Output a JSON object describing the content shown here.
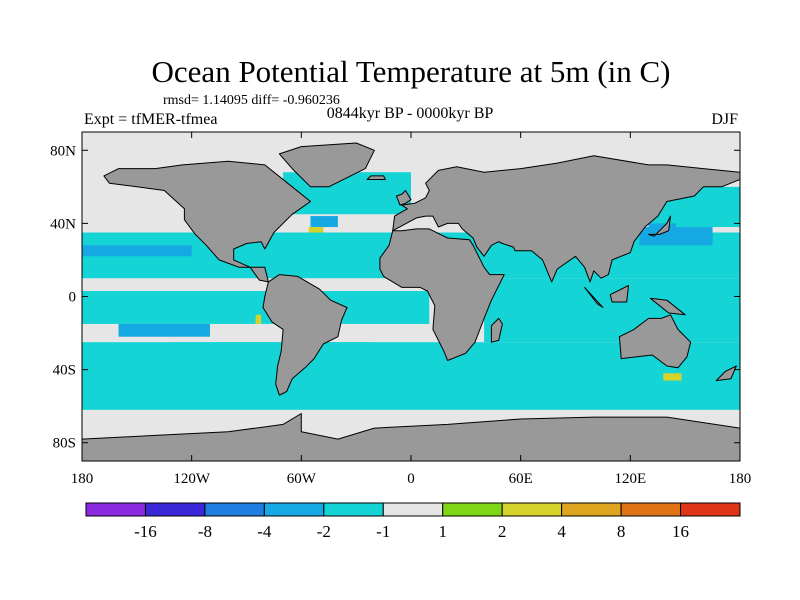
{
  "chart_data": {
    "type": "heatmap",
    "title": "Ocean Potential Temperature at 5m (in C)",
    "stats": "rmsd= 1.14095 diff= -0.960236",
    "experiment": "Expt = tfMER-tfmea",
    "period": "0844kyr BP - 0000kyr BP",
    "season": "DJF",
    "x_ticks": [
      {
        "value": -180,
        "label": "180"
      },
      {
        "value": -120,
        "label": "120W"
      },
      {
        "value": -60,
        "label": "60W"
      },
      {
        "value": 0,
        "label": "0"
      },
      {
        "value": 60,
        "label": "60E"
      },
      {
        "value": 120,
        "label": "120E"
      },
      {
        "value": 180,
        "label": "180"
      }
    ],
    "y_ticks": [
      {
        "value": 80,
        "label": "80N"
      },
      {
        "value": 40,
        "label": "40N"
      },
      {
        "value": 0,
        "label": "0"
      },
      {
        "value": -40,
        "label": "40S"
      },
      {
        "value": -80,
        "label": "80S"
      }
    ],
    "xlim": [
      -180,
      180
    ],
    "ylim": [
      -90,
      90
    ],
    "colorbar": {
      "colors": [
        "#8a2be2",
        "#3a28d8",
        "#1e7ee0",
        "#15a8e2",
        "#14d4d6",
        "#e6e6e6",
        "#7ed616",
        "#d6d22c",
        "#e0a520",
        "#e07414",
        "#e03416"
      ],
      "labels": [
        "-16",
        "-8",
        "-4",
        "-2",
        "-1",
        "1",
        "2",
        "4",
        "8",
        "16"
      ]
    },
    "land_color": "#999999",
    "regions": [
      {
        "cls": 4,
        "lon": [
          -180,
          180
        ],
        "lat": [
          -62,
          -25
        ]
      },
      {
        "cls": 4,
        "lon": [
          -130,
          -20
        ],
        "lat": [
          -45,
          -25
        ]
      },
      {
        "cls": 4,
        "lon": [
          -20,
          180
        ],
        "lat": [
          -52,
          -30
        ]
      },
      {
        "cls": 4,
        "lon": [
          -180,
          10
        ],
        "lat": [
          -15,
          3
        ]
      },
      {
        "cls": 4,
        "lon": [
          40,
          180
        ],
        "lat": [
          -25,
          10
        ]
      },
      {
        "cls": 4,
        "lon": [
          -180,
          180
        ],
        "lat": [
          10,
          35
        ]
      },
      {
        "cls": 4,
        "lon": [
          -70,
          0
        ],
        "lat": [
          45,
          68
        ]
      },
      {
        "cls": 4,
        "lon": [
          130,
          180
        ],
        "lat": [
          38,
          60
        ]
      },
      {
        "cls": 3,
        "lon": [
          -180,
          -120
        ],
        "lat": [
          22,
          28
        ]
      },
      {
        "cls": 3,
        "lon": [
          -160,
          -110
        ],
        "lat": [
          -22,
          -15
        ]
      },
      {
        "cls": 3,
        "lon": [
          125,
          165
        ],
        "lat": [
          28,
          38
        ]
      },
      {
        "cls": 3,
        "lon": [
          130,
          145
        ],
        "lat": [
          30,
          40
        ]
      },
      {
        "cls": 3,
        "lon": [
          -55,
          -40
        ],
        "lat": [
          38,
          44
        ]
      },
      {
        "cls": 7,
        "lon": [
          -56,
          -48
        ],
        "lat": [
          35,
          38
        ]
      },
      {
        "cls": 7,
        "lon": [
          -85,
          -82
        ],
        "lat": [
          -15,
          -10
        ]
      },
      {
        "cls": 7,
        "lon": [
          138,
          148
        ],
        "lat": [
          -46,
          -42
        ]
      }
    ],
    "land": [
      [
        [
          -168,
          66
        ],
        [
          -160,
          70
        ],
        [
          -140,
          70
        ],
        [
          -125,
          72
        ],
        [
          -100,
          74
        ],
        [
          -80,
          72
        ],
        [
          -65,
          60
        ],
        [
          -55,
          52
        ],
        [
          -65,
          45
        ],
        [
          -75,
          35
        ],
        [
          -80,
          26
        ],
        [
          -82,
          30
        ],
        [
          -90,
          29
        ],
        [
          -97,
          26
        ],
        [
          -97,
          20
        ],
        [
          -88,
          16
        ],
        [
          -83,
          9
        ],
        [
          -78,
          8
        ],
        [
          -80,
          16
        ],
        [
          -94,
          16
        ],
        [
          -105,
          20
        ],
        [
          -112,
          28
        ],
        [
          -118,
          34
        ],
        [
          -124,
          42
        ],
        [
          -124,
          48
        ],
        [
          -135,
          58
        ],
        [
          -150,
          60
        ],
        [
          -165,
          62
        ]
      ],
      [
        [
          -78,
          8
        ],
        [
          -72,
          12
        ],
        [
          -62,
          11
        ],
        [
          -50,
          4
        ],
        [
          -44,
          -2
        ],
        [
          -35,
          -6
        ],
        [
          -38,
          -13
        ],
        [
          -40,
          -22
        ],
        [
          -48,
          -26
        ],
        [
          -53,
          -34
        ],
        [
          -58,
          -39
        ],
        [
          -65,
          -45
        ],
        [
          -68,
          -52
        ],
        [
          -72,
          -54
        ],
        [
          -74,
          -48
        ],
        [
          -73,
          -38
        ],
        [
          -71,
          -30
        ],
        [
          -70,
          -18
        ],
        [
          -76,
          -14
        ],
        [
          -81,
          -6
        ],
        [
          -80,
          0
        ],
        [
          -78,
          8
        ]
      ],
      [
        [
          -55,
          60
        ],
        [
          -45,
          60
        ],
        [
          -25,
          70
        ],
        [
          -20,
          80
        ],
        [
          -30,
          84
        ],
        [
          -60,
          82
        ],
        [
          -72,
          78
        ],
        [
          -65,
          70
        ]
      ],
      [
        [
          -10,
          36
        ],
        [
          -5,
          36
        ],
        [
          3,
          37
        ],
        [
          10,
          37
        ],
        [
          20,
          32
        ],
        [
          32,
          31
        ],
        [
          34,
          28
        ],
        [
          40,
          16
        ],
        [
          43,
          12
        ],
        [
          51,
          12
        ],
        [
          44,
          -2
        ],
        [
          40,
          -12
        ],
        [
          35,
          -25
        ],
        [
          30,
          -31
        ],
        [
          20,
          -35
        ],
        [
          18,
          -30
        ],
        [
          12,
          -18
        ],
        [
          13,
          -5
        ],
        [
          9,
          3
        ],
        [
          5,
          5
        ],
        [
          -5,
          5
        ],
        [
          -15,
          11
        ],
        [
          -17,
          15
        ],
        [
          -17,
          21
        ],
        [
          -12,
          28
        ]
      ],
      [
        [
          -10,
          36
        ],
        [
          -9,
          44
        ],
        [
          -2,
          48
        ],
        [
          -5,
          50
        ],
        [
          2,
          51
        ],
        [
          8,
          54
        ],
        [
          10,
          58
        ],
        [
          8,
          62
        ],
        [
          15,
          69
        ],
        [
          25,
          71
        ],
        [
          40,
          68
        ],
        [
          60,
          70
        ],
        [
          80,
          73
        ],
        [
          100,
          77
        ],
        [
          130,
          72
        ],
        [
          140,
          72
        ],
        [
          160,
          70
        ],
        [
          180,
          68
        ],
        [
          180,
          64
        ],
        [
          170,
          60
        ],
        [
          160,
          60
        ],
        [
          155,
          55
        ],
        [
          140,
          52
        ],
        [
          135,
          44
        ],
        [
          128,
          38
        ],
        [
          122,
          30
        ],
        [
          120,
          24
        ],
        [
          110,
          20
        ],
        [
          108,
          12
        ],
        [
          104,
          10
        ],
        [
          100,
          14
        ],
        [
          98,
          8
        ],
        [
          95,
          16
        ],
        [
          90,
          22
        ],
        [
          80,
          15
        ],
        [
          77,
          8
        ],
        [
          72,
          20
        ],
        [
          66,
          25
        ],
        [
          57,
          25
        ],
        [
          56,
          27
        ],
        [
          50,
          29
        ],
        [
          48,
          30
        ],
        [
          44,
          28
        ],
        [
          40,
          22
        ],
        [
          36,
          27
        ],
        [
          34,
          32
        ],
        [
          28,
          37
        ],
        [
          26,
          40
        ],
        [
          20,
          40
        ],
        [
          15,
          38
        ],
        [
          12,
          44
        ],
        [
          8,
          44
        ],
        [
          3,
          43
        ]
      ],
      [
        [
          114,
          -22
        ],
        [
          122,
          -18
        ],
        [
          130,
          -12
        ],
        [
          137,
          -12
        ],
        [
          142,
          -10
        ],
        [
          146,
          -18
        ],
        [
          153,
          -25
        ],
        [
          151,
          -33
        ],
        [
          146,
          -39
        ],
        [
          140,
          -38
        ],
        [
          132,
          -32
        ],
        [
          115,
          -34
        ]
      ],
      [
        [
          44,
          -25
        ],
        [
          48,
          -24
        ],
        [
          50,
          -15
        ],
        [
          48,
          -12
        ],
        [
          44,
          -16
        ]
      ],
      [
        [
          95,
          5
        ],
        [
          105,
          -6
        ],
        [
          102,
          -4
        ]
      ],
      [
        [
          109,
          1
        ],
        [
          119,
          6
        ],
        [
          118,
          -3
        ],
        [
          110,
          -3
        ]
      ],
      [
        [
          131,
          -1
        ],
        [
          140,
          -2
        ],
        [
          150,
          -10
        ],
        [
          141,
          -9
        ]
      ],
      [
        [
          130,
          34
        ],
        [
          136,
          34
        ],
        [
          141,
          36
        ],
        [
          142,
          44
        ],
        [
          140,
          40
        ],
        [
          133,
          33
        ]
      ],
      [
        [
          -6,
          50
        ],
        [
          -3,
          51
        ],
        [
          0,
          53
        ],
        [
          -3,
          58
        ],
        [
          -5,
          56
        ],
        [
          -8,
          55
        ]
      ],
      [
        [
          -24,
          64
        ],
        [
          -14,
          64
        ],
        [
          -15,
          66
        ],
        [
          -22,
          66
        ]
      ],
      [
        [
          172,
          -41
        ],
        [
          178,
          -38
        ],
        [
          175,
          -45
        ],
        [
          167,
          -46
        ]
      ],
      [
        [
          -180,
          -90
        ],
        [
          180,
          -90
        ],
        [
          180,
          -72
        ],
        [
          140,
          -66
        ],
        [
          100,
          -66
        ],
        [
          60,
          -67
        ],
        [
          20,
          -70
        ],
        [
          -20,
          -72
        ],
        [
          -40,
          -78
        ],
        [
          -60,
          -74
        ],
        [
          -60,
          -64
        ],
        [
          -70,
          -70
        ],
        [
          -100,
          -74
        ],
        [
          -140,
          -76
        ],
        [
          -180,
          -78
        ]
      ]
    ]
  }
}
